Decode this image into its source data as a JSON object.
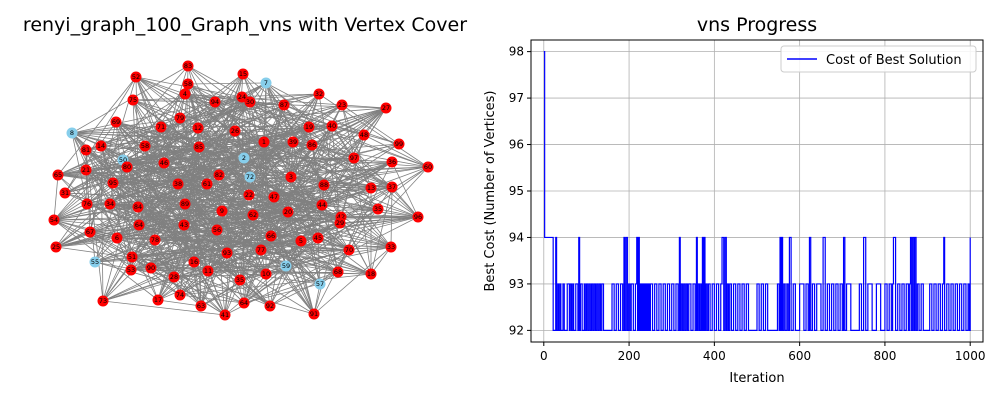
{
  "left_panel": {
    "title": "renyi_graph_100_Graph_vns with Vertex Cover",
    "cover_color": "#ff0000",
    "non_cover_color": "#87ceeb",
    "edge_color": "#808080",
    "nodes": [
      {
        "id": "83",
        "cover": true
      },
      {
        "id": "52",
        "cover": true
      },
      {
        "id": "15",
        "cover": true
      },
      {
        "id": "7",
        "cover": false
      },
      {
        "id": "75",
        "cover": true
      },
      {
        "id": "4",
        "cover": true
      },
      {
        "id": "94",
        "cover": true
      },
      {
        "id": "24",
        "cover": true
      },
      {
        "id": "30",
        "cover": true
      },
      {
        "id": "87",
        "cover": true
      },
      {
        "id": "32",
        "cover": true
      },
      {
        "id": "23",
        "cover": true
      },
      {
        "id": "27",
        "cover": true
      },
      {
        "id": "69",
        "cover": true
      },
      {
        "id": "71",
        "cover": true
      },
      {
        "id": "79",
        "cover": true
      },
      {
        "id": "12",
        "cover": true
      },
      {
        "id": "26",
        "cover": true
      },
      {
        "id": "19",
        "cover": true
      },
      {
        "id": "40",
        "cover": true
      },
      {
        "id": "48",
        "cover": true
      },
      {
        "id": "8",
        "cover": false
      },
      {
        "id": "14",
        "cover": true
      },
      {
        "id": "58",
        "cover": true
      },
      {
        "id": "85",
        "cover": true
      },
      {
        "id": "1",
        "cover": true
      },
      {
        "id": "39",
        "cover": true
      },
      {
        "id": "86",
        "cover": true
      },
      {
        "id": "99",
        "cover": true
      },
      {
        "id": "50",
        "cover": false
      },
      {
        "id": "80",
        "cover": true
      },
      {
        "id": "46",
        "cover": true
      },
      {
        "id": "2",
        "cover": false
      },
      {
        "id": "97",
        "cover": true
      },
      {
        "id": "36",
        "cover": true
      },
      {
        "id": "60",
        "cover": true
      },
      {
        "id": "65",
        "cover": true
      },
      {
        "id": "21",
        "cover": true
      },
      {
        "id": "95",
        "cover": true
      },
      {
        "id": "38",
        "cover": true
      },
      {
        "id": "61",
        "cover": true
      },
      {
        "id": "82",
        "cover": true
      },
      {
        "id": "72",
        "cover": false
      },
      {
        "id": "3",
        "cover": true
      },
      {
        "id": "88",
        "cover": true
      },
      {
        "id": "13",
        "cover": true
      },
      {
        "id": "37",
        "cover": true
      },
      {
        "id": "31",
        "cover": true
      },
      {
        "id": "22",
        "cover": true
      },
      {
        "id": "47",
        "cover": true
      },
      {
        "id": "89",
        "cover": true
      },
      {
        "id": "76",
        "cover": true
      },
      {
        "id": "34",
        "cover": true
      },
      {
        "id": "84",
        "cover": true
      },
      {
        "id": "9",
        "cover": true
      },
      {
        "id": "62",
        "cover": true
      },
      {
        "id": "20",
        "cover": true
      },
      {
        "id": "44",
        "cover": true
      },
      {
        "id": "42",
        "cover": true
      },
      {
        "id": "29",
        "cover": true
      },
      {
        "id": "35",
        "cover": true
      },
      {
        "id": "96",
        "cover": true
      },
      {
        "id": "54",
        "cover": true
      },
      {
        "id": "67",
        "cover": true
      },
      {
        "id": "64",
        "cover": true
      },
      {
        "id": "43",
        "cover": true
      },
      {
        "id": "56",
        "cover": true
      },
      {
        "id": "66",
        "cover": true
      },
      {
        "id": "45",
        "cover": true
      },
      {
        "id": "25",
        "cover": true
      },
      {
        "id": "6",
        "cover": true
      },
      {
        "id": "78",
        "cover": true
      },
      {
        "id": "93",
        "cover": true
      },
      {
        "id": "77",
        "cover": true
      },
      {
        "id": "5",
        "cover": true
      },
      {
        "id": "70",
        "cover": true
      },
      {
        "id": "33",
        "cover": true
      },
      {
        "id": "55",
        "cover": false
      },
      {
        "id": "51",
        "cover": true
      },
      {
        "id": "53",
        "cover": true
      },
      {
        "id": "90",
        "cover": true
      },
      {
        "id": "16",
        "cover": true
      },
      {
        "id": "59",
        "cover": false
      },
      {
        "id": "68",
        "cover": true
      },
      {
        "id": "18",
        "cover": true
      },
      {
        "id": "28",
        "cover": true
      },
      {
        "id": "11",
        "cover": true
      },
      {
        "id": "35b",
        "label": "35",
        "cover": true
      },
      {
        "id": "10",
        "cover": true
      },
      {
        "id": "57",
        "cover": false
      },
      {
        "id": "73",
        "cover": true
      },
      {
        "id": "17",
        "cover": true
      },
      {
        "id": "74",
        "cover": true
      },
      {
        "id": "63",
        "cover": true
      },
      {
        "id": "64b",
        "label": "64",
        "cover": true
      },
      {
        "id": "92",
        "cover": true
      },
      {
        "id": "41",
        "cover": true
      },
      {
        "id": "91",
        "cover": true
      },
      {
        "id": "58b",
        "label": "58",
        "cover": true
      },
      {
        "id": "81",
        "cover": true
      }
    ]
  },
  "right_panel": {
    "chart_data": {
      "type": "line",
      "title": "vns Progress",
      "xlabel": "Iteration",
      "ylabel": "Best Cost (Number of Vertices)",
      "xlim": [
        -30,
        1030
      ],
      "ylim": [
        91.75,
        98.25
      ],
      "xticks": [
        0,
        200,
        400,
        600,
        800,
        1000
      ],
      "yticks": [
        92,
        93,
        94,
        95,
        96,
        97,
        98
      ],
      "grid": true,
      "legend_position": "top-right",
      "series": [
        {
          "name": "Cost of Best Solution",
          "color": "#0000ff",
          "x": [
            0,
            2,
            3,
            20,
            22,
            25,
            28,
            30,
            33,
            35,
            38,
            40,
            42,
            45,
            48,
            50,
            55,
            60,
            62,
            65,
            68,
            70,
            72,
            75,
            80,
            82,
            84,
            86,
            90,
            95,
            97,
            100,
            103,
            106,
            109,
            112,
            115,
            118,
            121,
            124,
            127,
            130,
            133,
            136,
            140,
            150,
            160,
            165,
            170,
            175,
            180,
            185,
            188,
            190,
            193,
            196,
            199,
            202,
            205,
            210,
            215,
            218,
            220,
            222,
            224,
            226,
            228,
            230,
            232,
            234,
            236,
            238,
            240,
            242,
            244,
            246,
            248,
            250,
            255,
            260,
            265,
            270,
            275,
            280,
            285,
            290,
            295,
            300,
            305,
            310,
            315,
            318,
            320,
            322,
            325,
            328,
            331,
            334,
            337,
            340,
            345,
            350,
            355,
            358,
            360,
            362,
            365,
            368,
            370,
            372,
            374,
            376,
            378,
            380,
            383,
            386,
            390,
            395,
            400,
            405,
            410,
            415,
            418,
            420,
            422,
            425,
            428,
            430,
            433,
            436,
            440,
            445,
            450,
            455,
            460,
            465,
            470,
            475,
            480,
            490,
            500,
            505,
            510,
            515,
            520,
            525,
            530,
            540,
            548,
            552,
            554,
            556,
            558,
            560,
            563,
            566,
            570,
            573,
            576,
            580,
            585,
            590,
            600,
            610,
            615,
            620,
            623,
            626,
            630,
            635,
            640,
            650,
            655,
            660,
            665,
            670,
            675,
            680,
            685,
            690,
            695,
            700,
            703,
            706,
            710,
            720,
            730,
            740,
            745,
            750,
            755,
            760,
            770,
            780,
            790,
            800,
            805,
            810,
            815,
            818,
            820,
            825,
            830,
            835,
            840,
            845,
            850,
            855,
            858,
            860,
            862,
            865,
            868,
            870,
            873,
            876,
            880,
            885,
            890,
            900,
            905,
            910,
            915,
            920,
            925,
            930,
            935,
            938,
            940,
            945,
            950,
            955,
            960,
            965,
            970,
            975,
            980,
            985,
            990,
            995,
            998,
            1000
          ],
          "values": [
            98,
            94,
            94,
            94,
            92,
            92,
            94,
            92,
            93,
            92,
            93,
            92,
            92,
            93,
            92,
            92,
            93,
            92,
            93,
            92,
            93,
            92,
            92,
            93,
            92,
            94,
            92,
            93,
            92,
            93,
            92,
            93,
            92,
            93,
            92,
            93,
            92,
            93,
            92,
            93,
            92,
            93,
            92,
            93,
            92,
            92,
            93,
            92,
            93,
            92,
            93,
            92,
            94,
            92,
            94,
            92,
            93,
            92,
            93,
            92,
            93,
            94,
            92,
            94,
            92,
            93,
            92,
            93,
            92,
            93,
            92,
            93,
            92,
            93,
            92,
            93,
            92,
            93,
            92,
            93,
            92,
            93,
            92,
            93,
            92,
            93,
            92,
            93,
            92,
            93,
            92,
            94,
            92,
            93,
            92,
            93,
            92,
            93,
            92,
            93,
            92,
            93,
            92,
            94,
            92,
            93,
            92,
            93,
            92,
            94,
            92,
            94,
            92,
            93,
            92,
            93,
            92,
            93,
            92,
            93,
            92,
            93,
            94,
            94,
            92,
            94,
            92,
            93,
            92,
            93,
            92,
            93,
            92,
            93,
            92,
            93,
            92,
            93,
            92,
            92,
            93,
            92,
            93,
            92,
            93,
            92,
            92,
            92,
            93,
            92,
            94,
            92,
            94,
            92,
            93,
            92,
            93,
            92,
            94,
            92,
            93,
            92,
            93,
            92,
            93,
            92,
            94,
            92,
            93,
            92,
            93,
            92,
            94,
            92,
            93,
            92,
            93,
            92,
            93,
            92,
            93,
            92,
            94,
            92,
            93,
            92,
            92,
            93,
            92,
            94,
            92,
            93,
            92,
            93,
            92,
            93,
            92,
            93,
            92,
            93,
            94,
            92,
            93,
            92,
            93,
            92,
            93,
            92,
            93,
            94,
            92,
            94,
            92,
            94,
            92,
            93,
            92,
            93,
            92,
            92,
            93,
            92,
            93,
            92,
            93,
            92,
            93,
            94,
            92,
            93,
            92,
            93,
            92,
            93,
            92,
            93,
            92,
            93,
            92,
            93,
            92,
            94
          ]
        }
      ]
    }
  }
}
